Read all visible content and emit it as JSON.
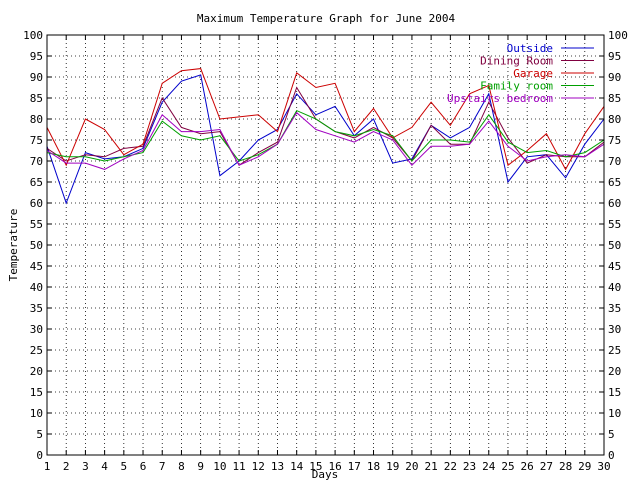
{
  "chart_data": {
    "type": "line",
    "title": "Maximum Temperature Graph for June 2004",
    "xlabel": "Days",
    "ylabel": "Temperature",
    "xlim": [
      1,
      30
    ],
    "ylim": [
      0,
      100
    ],
    "x_ticks": [
      1,
      2,
      3,
      4,
      5,
      6,
      7,
      8,
      9,
      10,
      11,
      12,
      13,
      14,
      15,
      16,
      17,
      18,
      19,
      20,
      21,
      22,
      23,
      24,
      25,
      26,
      27,
      28,
      29,
      30
    ],
    "y_ticks": [
      0,
      5,
      10,
      15,
      20,
      25,
      30,
      35,
      40,
      45,
      50,
      55,
      60,
      65,
      70,
      75,
      80,
      85,
      90,
      95,
      100
    ],
    "grid": true,
    "legend_position": "top-right",
    "x": [
      1,
      2,
      3,
      4,
      5,
      6,
      7,
      8,
      9,
      10,
      11,
      12,
      13,
      14,
      15,
      16,
      17,
      18,
      19,
      20,
      21,
      22,
      23,
      24,
      25,
      26,
      27,
      28,
      29,
      30
    ],
    "series": [
      {
        "name": "Outside",
        "color": "#0000cc",
        "values": [
          73.5,
          60,
          72,
          70.5,
          71,
          73,
          84,
          89,
          90.5,
          66.5,
          70,
          75,
          77.5,
          86,
          81,
          83,
          76,
          80,
          69.5,
          70.5,
          78.5,
          75.5,
          78,
          86,
          65,
          71,
          71.5,
          66,
          74,
          80
        ]
      },
      {
        "name": "Dining Room",
        "color": "#800040",
        "values": [
          73,
          70,
          71.5,
          71,
          73,
          73.5,
          85,
          78,
          76.5,
          77,
          69,
          72,
          74.5,
          87.5,
          80,
          77,
          75.5,
          78,
          75.5,
          70,
          78.5,
          74,
          74,
          84,
          75.5,
          69.5,
          71.5,
          71,
          71,
          74.5
        ]
      },
      {
        "name": "Garage",
        "color": "#cc0000",
        "values": [
          78,
          69,
          80,
          77.5,
          71.5,
          74,
          88.5,
          91.5,
          92,
          80,
          80.5,
          81,
          77,
          91,
          87.5,
          88.5,
          77,
          82.5,
          75.5,
          78,
          84,
          78.5,
          86,
          88,
          69,
          72.5,
          76.5,
          68,
          76.5,
          83
        ]
      },
      {
        "name": "Family room",
        "color": "#00a000",
        "values": [
          72,
          71,
          71,
          70,
          71,
          72,
          79.5,
          76,
          75,
          76,
          70,
          71.5,
          74,
          82,
          80,
          77,
          76,
          77.5,
          76,
          70,
          75,
          75,
          74.5,
          81,
          74.5,
          72,
          72.5,
          71,
          72,
          75
        ]
      },
      {
        "name": "Upstairs bedroom",
        "color": "#a000c0",
        "values": [
          72.5,
          69.5,
          69.5,
          68,
          70.5,
          72.5,
          81,
          77,
          77,
          77.5,
          69,
          71,
          74,
          81.5,
          77.5,
          76,
          74.5,
          77,
          75,
          69,
          73.5,
          73.5,
          74,
          79.5,
          73.5,
          70,
          71,
          71.5,
          71,
          74
        ]
      }
    ]
  }
}
